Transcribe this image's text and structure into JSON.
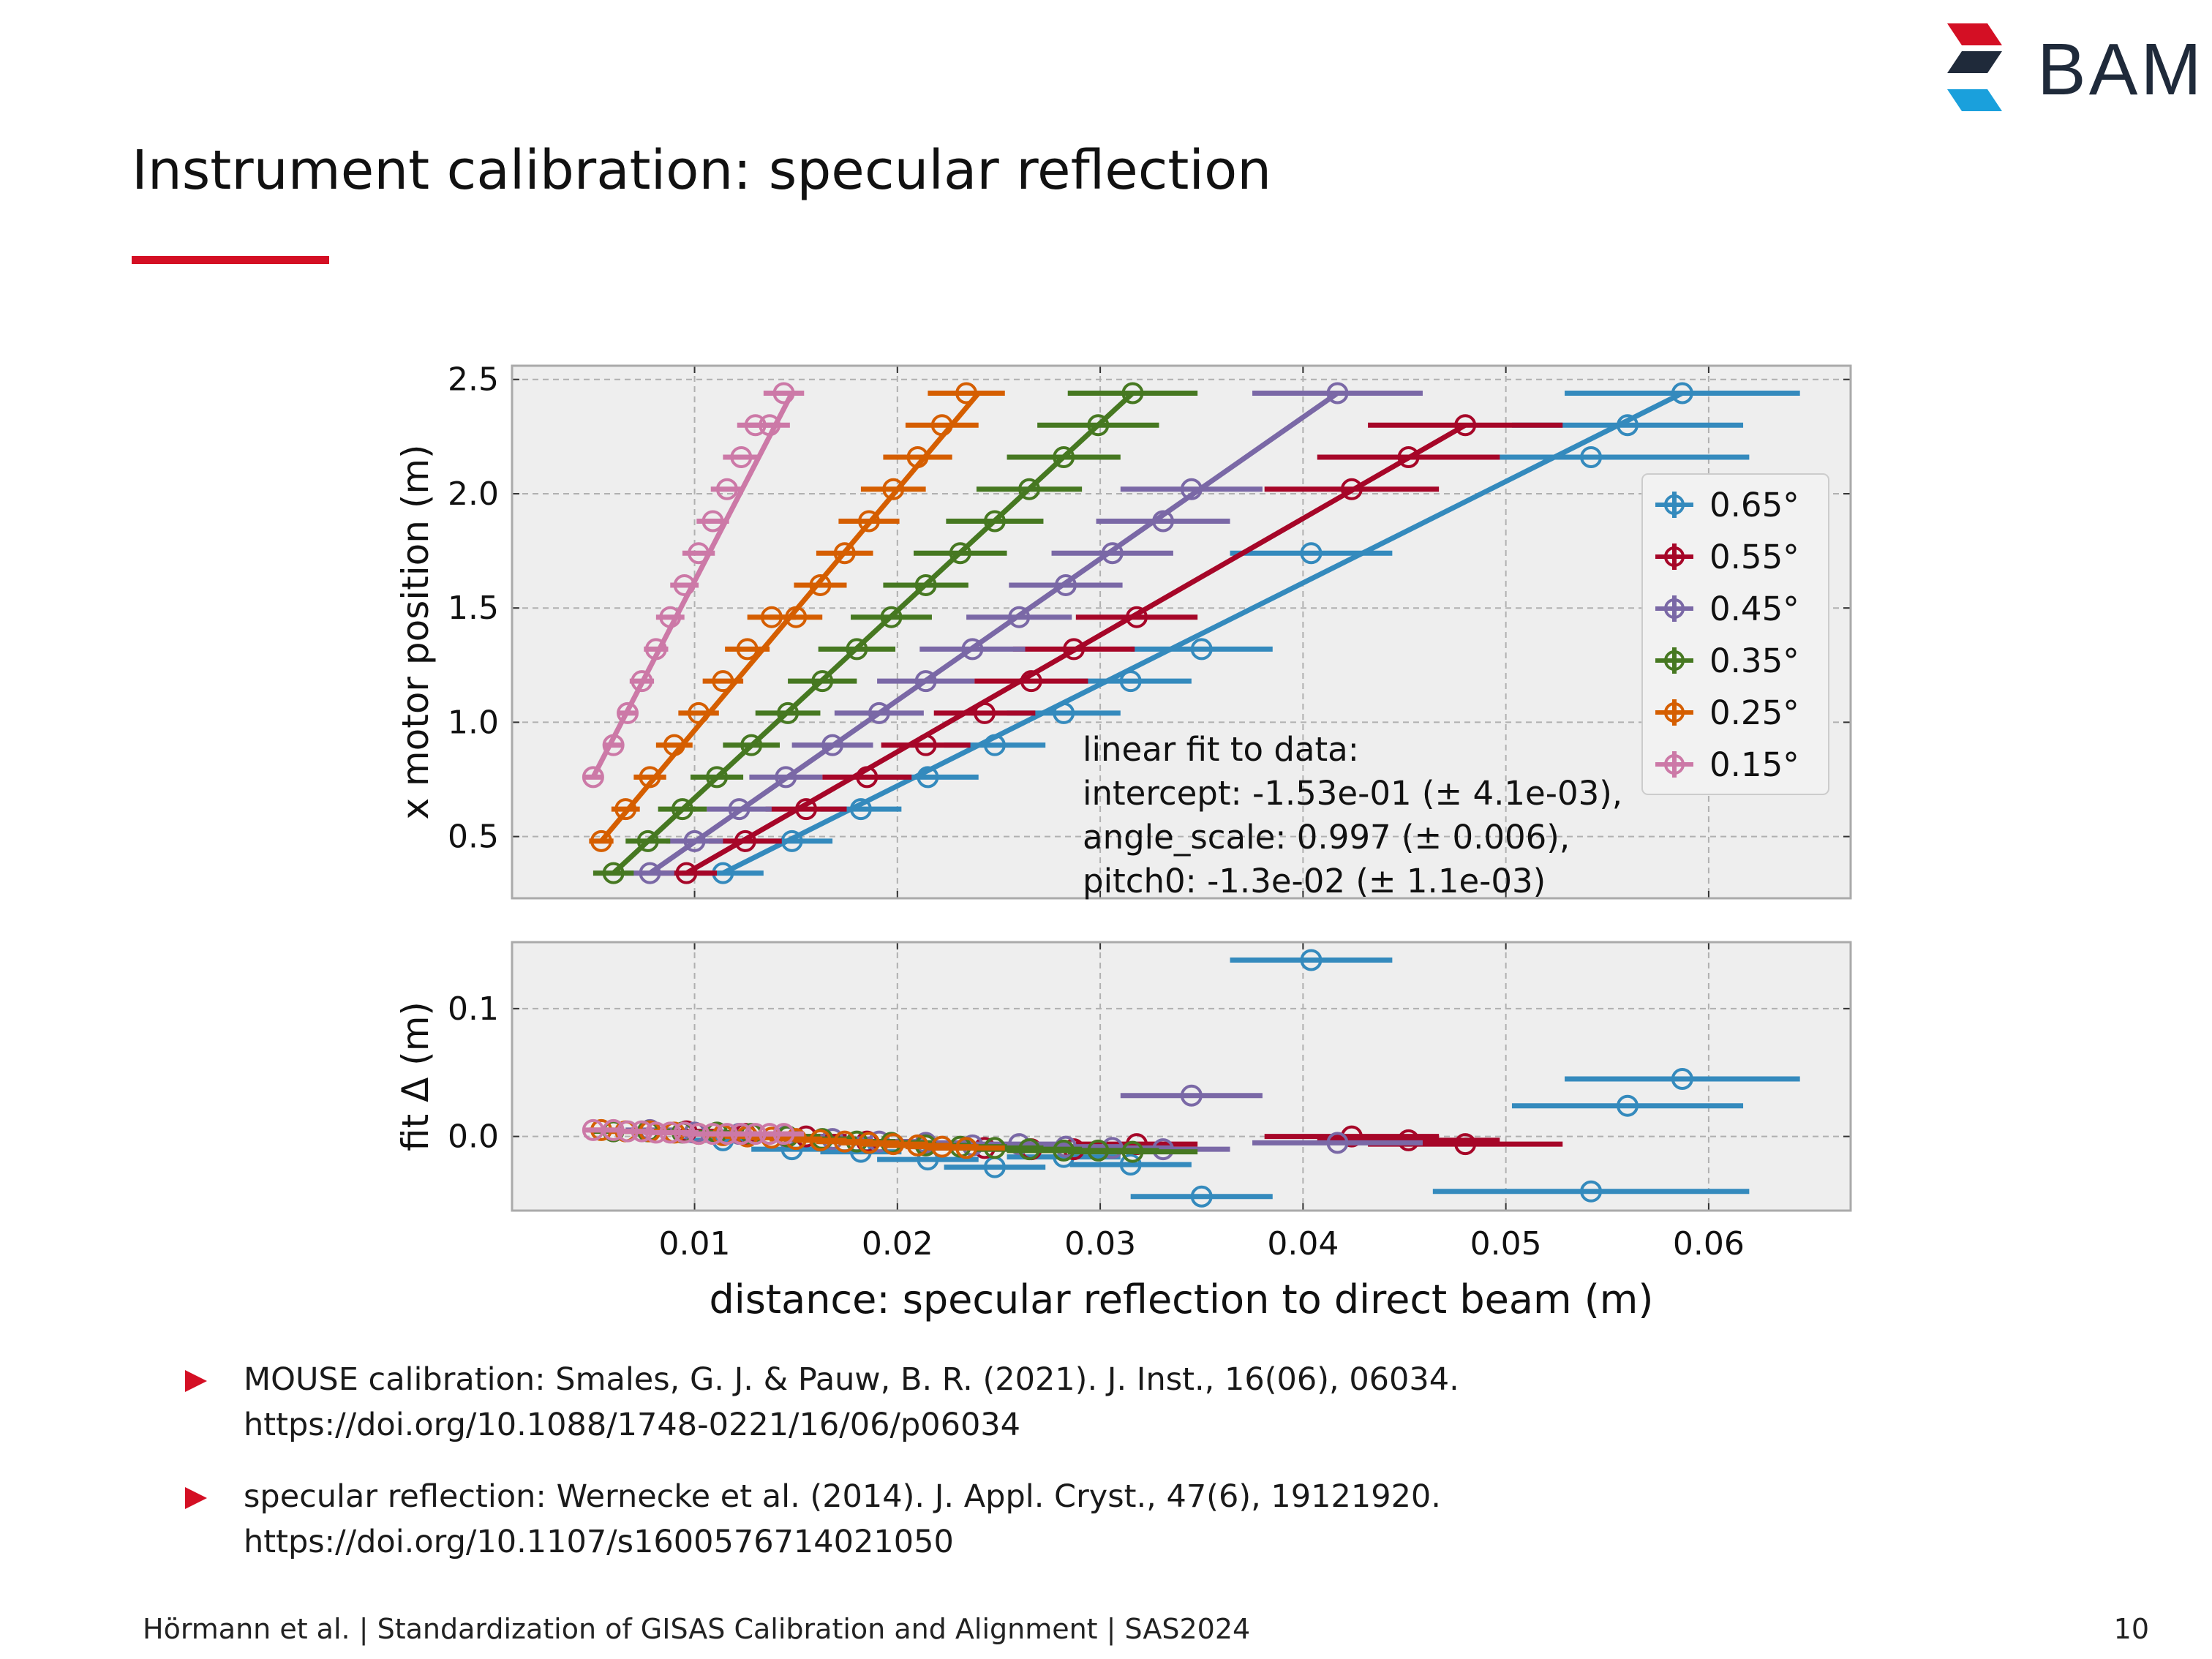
{
  "header": {
    "logo_text": "BAM",
    "logo_colors": [
      "#d40f24",
      "#1f2a3a",
      "#1aa0dc"
    ]
  },
  "slide": {
    "title": "Instrument calibration: specular reflection",
    "accent_color": "#d40f24"
  },
  "chart_data": [
    {
      "type": "scatter",
      "panel": "main",
      "xlabel": "distance: specular reflection to direct beam (m)",
      "ylabel": "x motor position (m)",
      "xlim": [
        0.001,
        0.067
      ],
      "ylim": [
        0.23,
        2.56
      ],
      "yticks": [
        0.5,
        1.0,
        1.5,
        2.0,
        2.5
      ],
      "ytick_labels": [
        "0.5",
        "1.0",
        "1.5",
        "2.0",
        "2.5"
      ],
      "grid": true,
      "legend_position": "right",
      "annotation": [
        "linear fit to data:",
        "intercept: -1.53e-01 (± 4.1e-03),",
        "angle_scale: 0.997 (± 0.006),",
        "pitch0: -1.3e-02 (± 1.1e-03)"
      ],
      "series": [
        {
          "name": "0.65°",
          "color": "#348abd",
          "x": [
            0.0114,
            0.0148,
            0.0182,
            0.0215,
            0.0248,
            0.0282,
            0.0315,
            0.035,
            0.0404,
            0.0542,
            0.056,
            0.0587
          ],
          "y": [
            0.34,
            0.48,
            0.62,
            0.76,
            0.9,
            1.04,
            1.18,
            1.32,
            1.74,
            2.16,
            2.3,
            2.44
          ],
          "xerr": [
            0.002,
            0.002,
            0.002,
            0.0025,
            0.0025,
            0.0028,
            0.003,
            0.0035,
            0.004,
            0.0078,
            0.0057,
            0.0058
          ],
          "fit": [
            [
              0.0114,
              0.34
            ],
            [
              0.0587,
              2.44
            ]
          ]
        },
        {
          "name": "0.55°",
          "color": "#a60628",
          "x": [
            0.0096,
            0.0125,
            0.0155,
            0.0185,
            0.0214,
            0.0243,
            0.0266,
            0.0287,
            0.0318,
            0.0424,
            0.0452,
            0.048
          ],
          "y": [
            0.34,
            0.48,
            0.62,
            0.76,
            0.9,
            1.04,
            1.18,
            1.32,
            1.46,
            2.02,
            2.16,
            2.3
          ],
          "xerr": [
            0.0015,
            0.0018,
            0.002,
            0.0022,
            0.0022,
            0.0025,
            0.0028,
            0.003,
            0.003,
            0.0043,
            0.0045,
            0.0048
          ],
          "fit": [
            [
              0.0096,
              0.34
            ],
            [
              0.048,
              2.3
            ]
          ]
        },
        {
          "name": "0.45°",
          "color": "#7a68a6",
          "x": [
            0.0078,
            0.01,
            0.0122,
            0.0145,
            0.0168,
            0.0191,
            0.0214,
            0.0237,
            0.026,
            0.0283,
            0.0306,
            0.0331,
            0.0345,
            0.0417
          ],
          "y": [
            0.34,
            0.48,
            0.62,
            0.76,
            0.9,
            1.04,
            1.18,
            1.32,
            1.46,
            1.6,
            1.74,
            1.88,
            2.02,
            2.44
          ],
          "xerr": [
            0.0012,
            0.0014,
            0.0016,
            0.0018,
            0.002,
            0.0022,
            0.0024,
            0.0026,
            0.0026,
            0.0028,
            0.003,
            0.0033,
            0.0035,
            0.0042
          ],
          "fit": [
            [
              0.0078,
              0.34
            ],
            [
              0.0417,
              2.44
            ]
          ]
        },
        {
          "name": "0.35°",
          "color": "#467821",
          "x": [
            0.006,
            0.0077,
            0.0094,
            0.0111,
            0.0128,
            0.0146,
            0.0163,
            0.018,
            0.0197,
            0.0214,
            0.0231,
            0.0248,
            0.0265,
            0.0282,
            0.0299,
            0.0316
          ],
          "y": [
            0.34,
            0.48,
            0.62,
            0.76,
            0.9,
            1.04,
            1.18,
            1.32,
            1.46,
            1.6,
            1.74,
            1.88,
            2.02,
            2.16,
            2.3,
            2.44
          ],
          "xerr": [
            0.001,
            0.0011,
            0.0012,
            0.0013,
            0.0014,
            0.0016,
            0.0017,
            0.0019,
            0.002,
            0.0021,
            0.0023,
            0.0024,
            0.0026,
            0.0028,
            0.003,
            0.0032
          ],
          "fit": [
            [
              0.006,
              0.34
            ],
            [
              0.0316,
              2.44
            ]
          ]
        },
        {
          "name": "0.25°",
          "color": "#d55e00",
          "x": [
            0.0054,
            0.0066,
            0.0078,
            0.009,
            0.0102,
            0.0114,
            0.0126,
            0.0138,
            0.015,
            0.0162,
            0.0174,
            0.0186,
            0.0198,
            0.021,
            0.0222,
            0.0234
          ],
          "y": [
            0.48,
            0.62,
            0.76,
            0.9,
            1.04,
            1.18,
            1.32,
            1.46,
            1.46,
            1.6,
            1.74,
            1.88,
            2.02,
            2.16,
            2.3,
            2.44
          ],
          "xerr": [
            0.0006,
            0.0007,
            0.0008,
            0.0009,
            0.001,
            0.001,
            0.0011,
            0.0012,
            0.0013,
            0.0013,
            0.0014,
            0.0015,
            0.0016,
            0.0017,
            0.0018,
            0.0019
          ],
          "fit": [
            [
              0.0054,
              0.48
            ],
            [
              0.024,
              2.44
            ]
          ]
        },
        {
          "name": "0.15°",
          "color": "#cc79a7",
          "x": [
            0.005,
            0.006,
            0.0067,
            0.0074,
            0.0081,
            0.0088,
            0.0095,
            0.0102,
            0.0109,
            0.0116,
            0.0123,
            0.013,
            0.0137,
            0.0144
          ],
          "y": [
            0.76,
            0.9,
            1.04,
            1.18,
            1.32,
            1.46,
            1.6,
            1.74,
            1.88,
            2.02,
            2.16,
            2.3,
            2.3,
            2.44
          ],
          "xerr": [
            0.0004,
            0.0005,
            0.0005,
            0.0006,
            0.0006,
            0.0007,
            0.0007,
            0.0008,
            0.0008,
            0.0008,
            0.0009,
            0.0009,
            0.001,
            0.001
          ],
          "fit": [
            [
              0.005,
              0.76
            ],
            [
              0.0148,
              2.44
            ]
          ]
        }
      ]
    },
    {
      "type": "scatter",
      "panel": "residuals",
      "xlabel": "distance: specular reflection to direct beam (m)",
      "ylabel": "fit Δ (m)",
      "xlim": [
        0.001,
        0.067
      ],
      "ylim": [
        -0.058,
        0.152
      ],
      "yticks": [
        0.0,
        0.1
      ],
      "ytick_labels": [
        "0.0",
        "0.1"
      ],
      "xticks": [
        0.01,
        0.02,
        0.03,
        0.04,
        0.05,
        0.06
      ],
      "xtick_labels": [
        "0.01",
        "0.02",
        "0.03",
        "0.04",
        "0.05",
        "0.06"
      ],
      "grid": true,
      "series": [
        {
          "name": "0.65°",
          "color": "#348abd",
          "x": [
            0.0114,
            0.0148,
            0.0182,
            0.0215,
            0.0248,
            0.0282,
            0.0315,
            0.035,
            0.0404,
            0.0542,
            0.056,
            0.0587
          ],
          "y": [
            -0.003,
            -0.01,
            -0.012,
            -0.018,
            -0.024,
            -0.016,
            -0.022,
            -0.047,
            0.138,
            -0.043,
            0.024,
            0.045
          ],
          "xerr": [
            0.002,
            0.002,
            0.002,
            0.0025,
            0.0025,
            0.0028,
            0.003,
            0.0035,
            0.004,
            0.0078,
            0.0057,
            0.0058
          ]
        },
        {
          "name": "0.55°",
          "color": "#a60628",
          "x": [
            0.0096,
            0.0125,
            0.0155,
            0.0185,
            0.0214,
            0.0243,
            0.0266,
            0.0287,
            0.0318,
            0.0424,
            0.0452,
            0.048
          ],
          "y": [
            0.004,
            0.002,
            0.0,
            -0.004,
            -0.007,
            -0.009,
            -0.01,
            -0.01,
            -0.006,
            0.0,
            -0.003,
            -0.006
          ],
          "xerr": [
            0.0015,
            0.0018,
            0.002,
            0.0022,
            0.0022,
            0.0025,
            0.0028,
            0.003,
            0.003,
            0.0043,
            0.0045,
            0.0048
          ]
        },
        {
          "name": "0.45°",
          "color": "#7a68a6",
          "x": [
            0.0078,
            0.01,
            0.0122,
            0.0145,
            0.0168,
            0.0191,
            0.0214,
            0.0237,
            0.026,
            0.0283,
            0.0306,
            0.0331,
            0.0345,
            0.0417
          ],
          "y": [
            0.005,
            0.003,
            0.002,
            0.0,
            -0.002,
            -0.004,
            -0.005,
            -0.007,
            -0.006,
            -0.008,
            -0.009,
            -0.01,
            0.032,
            -0.005
          ],
          "xerr": [
            0.0012,
            0.0014,
            0.0016,
            0.0018,
            0.002,
            0.0022,
            0.0024,
            0.0026,
            0.0026,
            0.0028,
            0.003,
            0.0033,
            0.0035,
            0.0042
          ]
        },
        {
          "name": "0.35°",
          "color": "#467821",
          "x": [
            0.006,
            0.0077,
            0.0094,
            0.0111,
            0.0128,
            0.0146,
            0.0163,
            0.018,
            0.0197,
            0.0214,
            0.0231,
            0.0248,
            0.0265,
            0.0282,
            0.0299,
            0.0316
          ],
          "y": [
            0.004,
            0.004,
            0.003,
            0.003,
            0.002,
            0.0,
            -0.002,
            -0.004,
            -0.005,
            -0.007,
            -0.008,
            -0.009,
            -0.01,
            -0.011,
            -0.011,
            -0.012
          ],
          "xerr": [
            0.001,
            0.0011,
            0.0012,
            0.0013,
            0.0014,
            0.0016,
            0.0017,
            0.0019,
            0.002,
            0.0021,
            0.0023,
            0.0024,
            0.0026,
            0.0028,
            0.003,
            0.0032
          ]
        },
        {
          "name": "0.25°",
          "color": "#d55e00",
          "x": [
            0.0054,
            0.0066,
            0.0078,
            0.009,
            0.0102,
            0.0114,
            0.0126,
            0.0138,
            0.015,
            0.0162,
            0.0174,
            0.0186,
            0.0198,
            0.021,
            0.0222,
            0.0234
          ],
          "y": [
            0.005,
            0.004,
            0.004,
            0.003,
            0.002,
            0.001,
            0.0,
            -0.001,
            -0.002,
            -0.003,
            -0.004,
            -0.005,
            -0.006,
            -0.007,
            -0.008,
            -0.009
          ],
          "xerr": [
            0.0006,
            0.0007,
            0.0008,
            0.0009,
            0.001,
            0.001,
            0.0011,
            0.0012,
            0.0013,
            0.0013,
            0.0014,
            0.0015,
            0.0016,
            0.0017,
            0.0018,
            0.0019
          ]
        },
        {
          "name": "0.15°",
          "color": "#cc79a7",
          "x": [
            0.005,
            0.006,
            0.0067,
            0.0074,
            0.0081,
            0.0088,
            0.0095,
            0.0102,
            0.0109,
            0.0116,
            0.0123,
            0.013,
            0.0137,
            0.0144
          ],
          "y": [
            0.005,
            0.005,
            0.004,
            0.004,
            0.003,
            0.003,
            0.003,
            0.002,
            0.002,
            0.002,
            0.002,
            0.002,
            0.002,
            0.002
          ],
          "xerr": [
            0.0004,
            0.0005,
            0.0005,
            0.0006,
            0.0006,
            0.0007,
            0.0007,
            0.0008,
            0.0008,
            0.0008,
            0.0009,
            0.0009,
            0.001,
            0.001
          ]
        }
      ]
    }
  ],
  "references": [
    {
      "line1": "MOUSE calibration: Smales, G. J. & Pauw, B. R. (2021). J. Inst., 16(06), 06034.",
      "line2": "https://doi.org/10.1088/1748-0221/16/06/p06034"
    },
    {
      "line1": "specular reflection: Wernecke et al. (2014). J. Appl. Cryst., 47(6), 19121920.",
      "line2": "https://doi.org/10.1107/s1600576714021050"
    }
  ],
  "footer": {
    "text": "Hörmann et al. | Standardization of GISAS Calibration and Alignment | SAS2024",
    "page_number": "10"
  }
}
